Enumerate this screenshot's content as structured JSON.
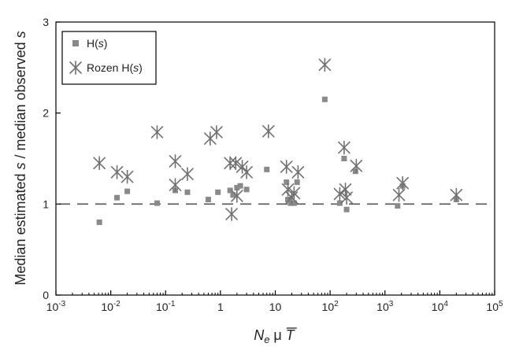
{
  "chart_data": {
    "type": "scatter",
    "title": "",
    "xlabel_parts": [
      "N",
      "e",
      " μ ",
      "T"
    ],
    "ylabel_parts": [
      "Median estimated ",
      "s",
      " / median observed ",
      "s"
    ],
    "x_scale": "log",
    "xlim": [
      0.001,
      100000
    ],
    "ylim": [
      0,
      3
    ],
    "x_ticks": [
      {
        "value": 0.001,
        "base": "10",
        "exp": "-3"
      },
      {
        "value": 0.01,
        "base": "10",
        "exp": "-2"
      },
      {
        "value": 0.1,
        "base": "10",
        "exp": "-1"
      },
      {
        "value": 1,
        "base": "1",
        "exp": ""
      },
      {
        "value": 10,
        "base": "10",
        "exp": ""
      },
      {
        "value": 100,
        "base": "10",
        "exp": "2"
      },
      {
        "value": 1000,
        "base": "10",
        "exp": "3"
      },
      {
        "value": 10000,
        "base": "10",
        "exp": "4"
      },
      {
        "value": 100000,
        "base": "10",
        "exp": "5"
      }
    ],
    "y_ticks": [
      {
        "value": 0,
        "label": "0"
      },
      {
        "value": 1,
        "label": "1"
      },
      {
        "value": 2,
        "label": "2"
      },
      {
        "value": 3,
        "label": "3"
      }
    ],
    "reference_line": {
      "y": 1,
      "style": "dashed"
    },
    "grid": false,
    "legend_placement": "top-left",
    "colors": {
      "hs": "#8a8a8a",
      "rozen": "#707070",
      "axis": "#000000",
      "refline": "#555555"
    },
    "series": [
      {
        "name_parts": [
          "H(",
          "s",
          ")"
        ],
        "marker": "square",
        "points": [
          {
            "x": 0.0062,
            "y": 0.8
          },
          {
            "x": 0.013,
            "y": 1.07
          },
          {
            "x": 0.02,
            "y": 1.14
          },
          {
            "x": 0.07,
            "y": 1.01
          },
          {
            "x": 0.15,
            "y": 1.15
          },
          {
            "x": 0.25,
            "y": 1.13
          },
          {
            "x": 0.6,
            "y": 1.05
          },
          {
            "x": 0.9,
            "y": 1.13
          },
          {
            "x": 1.5,
            "y": 1.15
          },
          {
            "x": 1.7,
            "y": 1.1
          },
          {
            "x": 2.0,
            "y": 1.18
          },
          {
            "x": 2.3,
            "y": 1.2
          },
          {
            "x": 3.0,
            "y": 1.16
          },
          {
            "x": 7.0,
            "y": 1.38
          },
          {
            "x": 16,
            "y": 1.24
          },
          {
            "x": 17,
            "y": 1.05
          },
          {
            "x": 19,
            "y": 1.01
          },
          {
            "x": 22,
            "y": 1.01
          },
          {
            "x": 25,
            "y": 1.24
          },
          {
            "x": 80,
            "y": 2.15
          },
          {
            "x": 150,
            "y": 1.01
          },
          {
            "x": 180,
            "y": 1.5
          },
          {
            "x": 200,
            "y": 0.94
          },
          {
            "x": 290,
            "y": 1.36
          },
          {
            "x": 1700,
            "y": 0.98
          },
          {
            "x": 2100,
            "y": 1.2
          },
          {
            "x": 20000,
            "y": 1.05
          }
        ]
      },
      {
        "name_parts": [
          "Rozen H(",
          "s",
          ")"
        ],
        "marker": "asterisk",
        "points": [
          {
            "x": 0.0062,
            "y": 1.45
          },
          {
            "x": 0.013,
            "y": 1.35
          },
          {
            "x": 0.02,
            "y": 1.3
          },
          {
            "x": 0.07,
            "y": 1.79
          },
          {
            "x": 0.15,
            "y": 1.47
          },
          {
            "x": 0.15,
            "y": 1.21
          },
          {
            "x": 0.25,
            "y": 1.33
          },
          {
            "x": 0.65,
            "y": 1.72
          },
          {
            "x": 0.85,
            "y": 1.79
          },
          {
            "x": 1.5,
            "y": 1.45
          },
          {
            "x": 1.6,
            "y": 0.89
          },
          {
            "x": 1.9,
            "y": 1.45
          },
          {
            "x": 2.0,
            "y": 1.09
          },
          {
            "x": 2.5,
            "y": 1.41
          },
          {
            "x": 3.0,
            "y": 1.35
          },
          {
            "x": 7.5,
            "y": 1.8
          },
          {
            "x": 16,
            "y": 1.41
          },
          {
            "x": 17,
            "y": 1.16
          },
          {
            "x": 20,
            "y": 1.07
          },
          {
            "x": 22,
            "y": 1.12
          },
          {
            "x": 26,
            "y": 1.35
          },
          {
            "x": 80,
            "y": 2.53
          },
          {
            "x": 150,
            "y": 1.11
          },
          {
            "x": 180,
            "y": 1.62
          },
          {
            "x": 190,
            "y": 1.16
          },
          {
            "x": 200,
            "y": 1.07
          },
          {
            "x": 300,
            "y": 1.42
          },
          {
            "x": 1800,
            "y": 1.1
          },
          {
            "x": 2100,
            "y": 1.23
          },
          {
            "x": 20000,
            "y": 1.1
          }
        ]
      }
    ]
  }
}
